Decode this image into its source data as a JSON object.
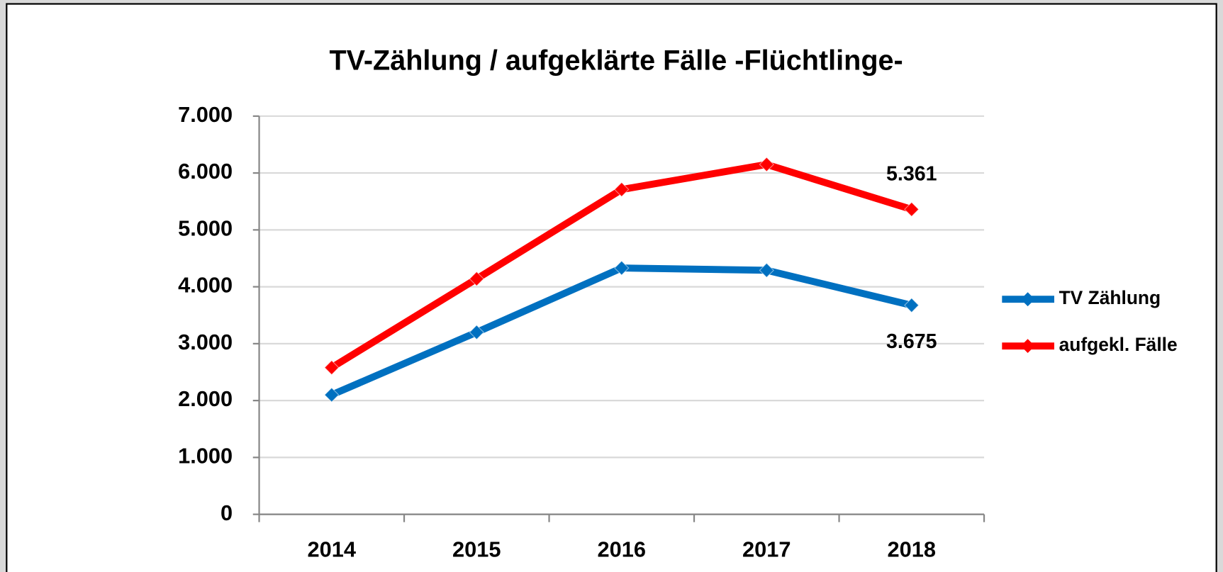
{
  "chart_data": {
    "type": "line",
    "title": "TV-Zählung / aufgeklärte Fälle  -Flüchtlinge-",
    "categories": [
      "2014",
      "2015",
      "2016",
      "2017",
      "2018"
    ],
    "series": [
      {
        "name": "TV Zählung",
        "color": "#0070c0",
        "values": [
          2100,
          3200,
          4330,
          4290,
          3675
        ],
        "value_labels": [
          null,
          null,
          null,
          null,
          "3.675"
        ]
      },
      {
        "name": "aufgekl. Fälle",
        "color": "#ff0000",
        "values": [
          2580,
          4140,
          5710,
          6150,
          5361
        ],
        "value_labels": [
          null,
          null,
          null,
          null,
          "5.361"
        ]
      }
    ],
    "ylim": [
      0,
      7000
    ],
    "yticks": [
      0,
      {
        "value": 1000,
        "label": "1.000"
      },
      {
        "value": 2000,
        "label": "2.000"
      },
      {
        "value": 3000,
        "label": "3.000"
      },
      {
        "value": 4000,
        "label": "4.000"
      },
      {
        "value": 5000,
        "label": "5.000"
      },
      {
        "value": 6000,
        "label": "6.000"
      },
      {
        "value": 7000,
        "label": "7.000"
      }
    ],
    "grid": true,
    "legend": "right"
  }
}
